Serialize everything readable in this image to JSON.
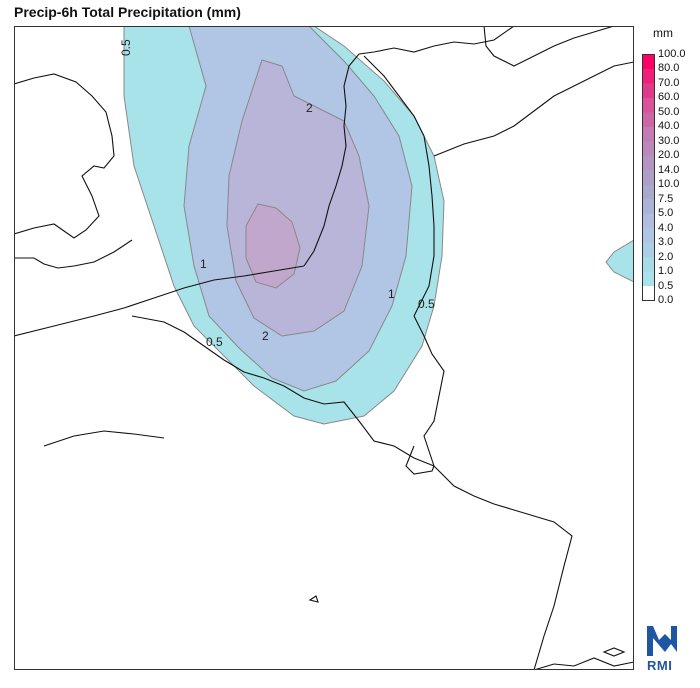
{
  "title": "Precip-6h Total Precipitation (mm)",
  "legend": {
    "unit": "mm",
    "levels": [
      "100.0",
      "80.0",
      "70.0",
      "60.0",
      "50.0",
      "40.0",
      "30.0",
      "20.0",
      "14.0",
      "10.0",
      "7.5",
      "5.0",
      "4.0",
      "3.0",
      "2.0",
      "1.0",
      "0.5",
      "0.0"
    ],
    "colors": [
      "#ff0066",
      "#f0207a",
      "#e03a8a",
      "#d8539a",
      "#cc66a6",
      "#c47ab2",
      "#bc88ba",
      "#b494c0",
      "#ae9fc6",
      "#a8a9cc",
      "#a9b4d6",
      "#b0bde0",
      "#b0c4e4",
      "#adcfe6",
      "#a7dbe6",
      "#a8e3e9",
      "#ffffff"
    ]
  },
  "contours": {
    "label_05_top": "0.5",
    "label_2_top": "2",
    "label_1_left": "1",
    "label_1_right": "1",
    "label_05_right": "0.5",
    "label_2_bottom": "2",
    "label_05_bottom": "0.5"
  },
  "logo": {
    "text": "RMI"
  }
}
